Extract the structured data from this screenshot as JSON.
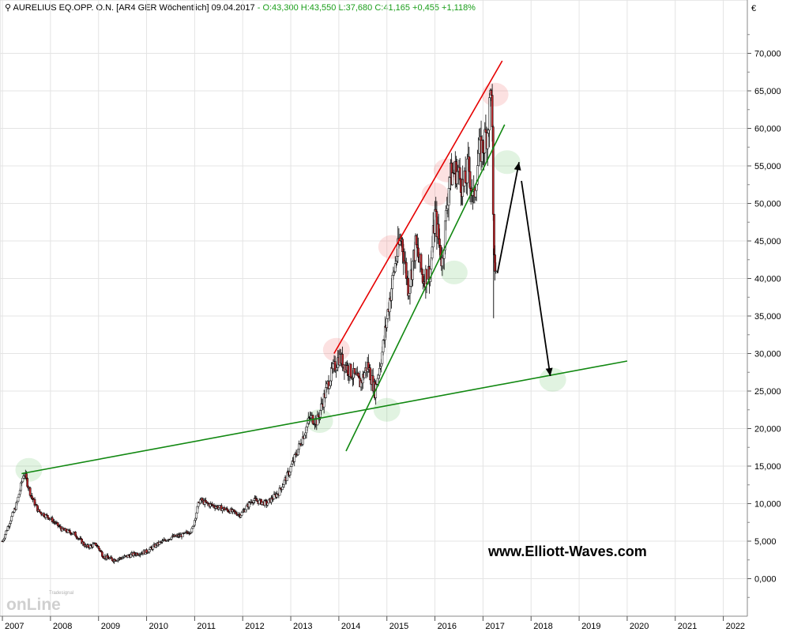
{
  "header": {
    "symbol_icon": "chart-symbol-icon",
    "instrument": "AURELIUS EQ.OPP.",
    "class": "O.N.",
    "meta": "[AR4 GER  Wöchentlich]",
    "date": "09.04.2017",
    "ohlc": "- O:43,300 H:43,550 L:37,680",
    "change": "C:41,165 +0,455 +1,118%"
  },
  "currency_label": "€",
  "watermark_text": "www.Elliott-Waves.com",
  "logo": {
    "brand_top": "Tradesignal",
    "brand": "onLine"
  },
  "colors": {
    "up_candle": "#ffffff",
    "down_candle": "#c0262b",
    "outline": "#000000",
    "resistance": "#e60000",
    "support": "#118811",
    "arrow": "#000000"
  },
  "chart_data": {
    "type": "candlestick",
    "title": "",
    "xlabel": "",
    "ylabel": "",
    "x_tick_labels": [
      "2007",
      "2008",
      "2009",
      "2010",
      "2011",
      "2012",
      "2013",
      "2014",
      "2015",
      "2016",
      "2017",
      "2018",
      "2019",
      "2020",
      "2021",
      "2022"
    ],
    "y_tick_labels": [
      "0,000",
      "5,000",
      "10,000",
      "15,000",
      "20,000",
      "25,000",
      "30,000",
      "35,000",
      "40,000",
      "45,000",
      "50,000",
      "55,000",
      "60,000",
      "65,000",
      "70,000"
    ],
    "ylim": [
      -5,
      75
    ],
    "xlim": [
      2006.95,
      2022.5
    ],
    "grid": true,
    "axis_position": "right",
    "series": [
      {
        "name": "",
        "anchors": [
          [
            2007.0,
            5.0
          ],
          [
            2007.15,
            7.5
          ],
          [
            2007.3,
            10.0
          ],
          [
            2007.45,
            14.2
          ],
          [
            2007.6,
            11.0
          ],
          [
            2007.75,
            9.0
          ],
          [
            2008.0,
            8.0
          ],
          [
            2008.25,
            6.5
          ],
          [
            2008.5,
            6.0
          ],
          [
            2008.75,
            4.2
          ],
          [
            2008.95,
            4.6
          ],
          [
            2009.1,
            3.0
          ],
          [
            2009.3,
            2.5
          ],
          [
            2009.5,
            2.8
          ],
          [
            2009.75,
            3.3
          ],
          [
            2010.0,
            3.6
          ],
          [
            2010.2,
            4.5
          ],
          [
            2010.5,
            5.5
          ],
          [
            2010.75,
            5.8
          ],
          [
            2010.95,
            6.5
          ],
          [
            2011.1,
            10.5
          ],
          [
            2011.25,
            10.0
          ],
          [
            2011.5,
            9.5
          ],
          [
            2011.75,
            9.0
          ],
          [
            2011.95,
            8.5
          ],
          [
            2012.2,
            10.5
          ],
          [
            2012.5,
            10.0
          ],
          [
            2012.75,
            11.5
          ],
          [
            2012.95,
            14.0
          ],
          [
            2013.2,
            18.0
          ],
          [
            2013.4,
            21.5
          ],
          [
            2013.55,
            21.0
          ],
          [
            2013.8,
            26.5
          ],
          [
            2014.0,
            29.5
          ],
          [
            2014.25,
            27.5
          ],
          [
            2014.45,
            26.0
          ],
          [
            2014.6,
            28.5
          ],
          [
            2014.75,
            25.0
          ],
          [
            2014.9,
            30.0
          ],
          [
            2015.05,
            37.0
          ],
          [
            2015.2,
            43.0
          ],
          [
            2015.3,
            45.5
          ],
          [
            2015.45,
            38.5
          ],
          [
            2015.6,
            44.5
          ],
          [
            2015.75,
            40.0
          ],
          [
            2015.9,
            41.0
          ],
          [
            2016.0,
            48.5
          ],
          [
            2016.15,
            42.0
          ],
          [
            2016.3,
            53.5
          ],
          [
            2016.45,
            54.5
          ],
          [
            2016.6,
            52.0
          ],
          [
            2016.7,
            55.0
          ],
          [
            2016.8,
            50.0
          ],
          [
            2016.9,
            56.5
          ],
          [
            2017.0,
            57.5
          ],
          [
            2017.1,
            60.0
          ],
          [
            2017.18,
            66.5
          ],
          [
            2017.22,
            42.0
          ],
          [
            2017.28,
            41.2
          ]
        ]
      }
    ],
    "trendlines": [
      {
        "name": "resistance",
        "color": "red",
        "from": [
          2013.9,
          30.0
        ],
        "to": [
          2017.4,
          69.0
        ]
      },
      {
        "name": "steep-support",
        "color": "green",
        "from": [
          2014.15,
          17.0
        ],
        "to": [
          2017.45,
          60.5
        ]
      },
      {
        "name": "long-support",
        "color": "green",
        "from": [
          2007.4,
          14.0
        ],
        "to": [
          2020.0,
          29.0
        ]
      }
    ],
    "arrows": [
      {
        "from": [
          2017.3,
          40.7
        ],
        "to": [
          2017.75,
          55.5
        ]
      },
      {
        "from": [
          2017.8,
          53.0
        ],
        "to": [
          2018.4,
          27.0
        ]
      }
    ],
    "highlights": [
      {
        "color": "green",
        "at": [
          2007.55,
          14.5
        ]
      },
      {
        "color": "green",
        "at": [
          2013.6,
          21.0
        ]
      },
      {
        "color": "green",
        "at": [
          2015.0,
          22.5
        ]
      },
      {
        "color": "green",
        "at": [
          2016.4,
          40.8
        ]
      },
      {
        "color": "green",
        "at": [
          2017.5,
          55.5
        ]
      },
      {
        "color": "green",
        "at": [
          2018.45,
          26.5
        ]
      },
      {
        "color": "red",
        "at": [
          2013.95,
          30.5
        ]
      },
      {
        "color": "red",
        "at": [
          2015.1,
          44.2
        ]
      },
      {
        "color": "red",
        "at": [
          2016.0,
          51.2
        ]
      },
      {
        "color": "red",
        "at": [
          2016.25,
          54.4
        ]
      },
      {
        "color": "red",
        "at": [
          2017.25,
          64.5
        ]
      }
    ]
  }
}
